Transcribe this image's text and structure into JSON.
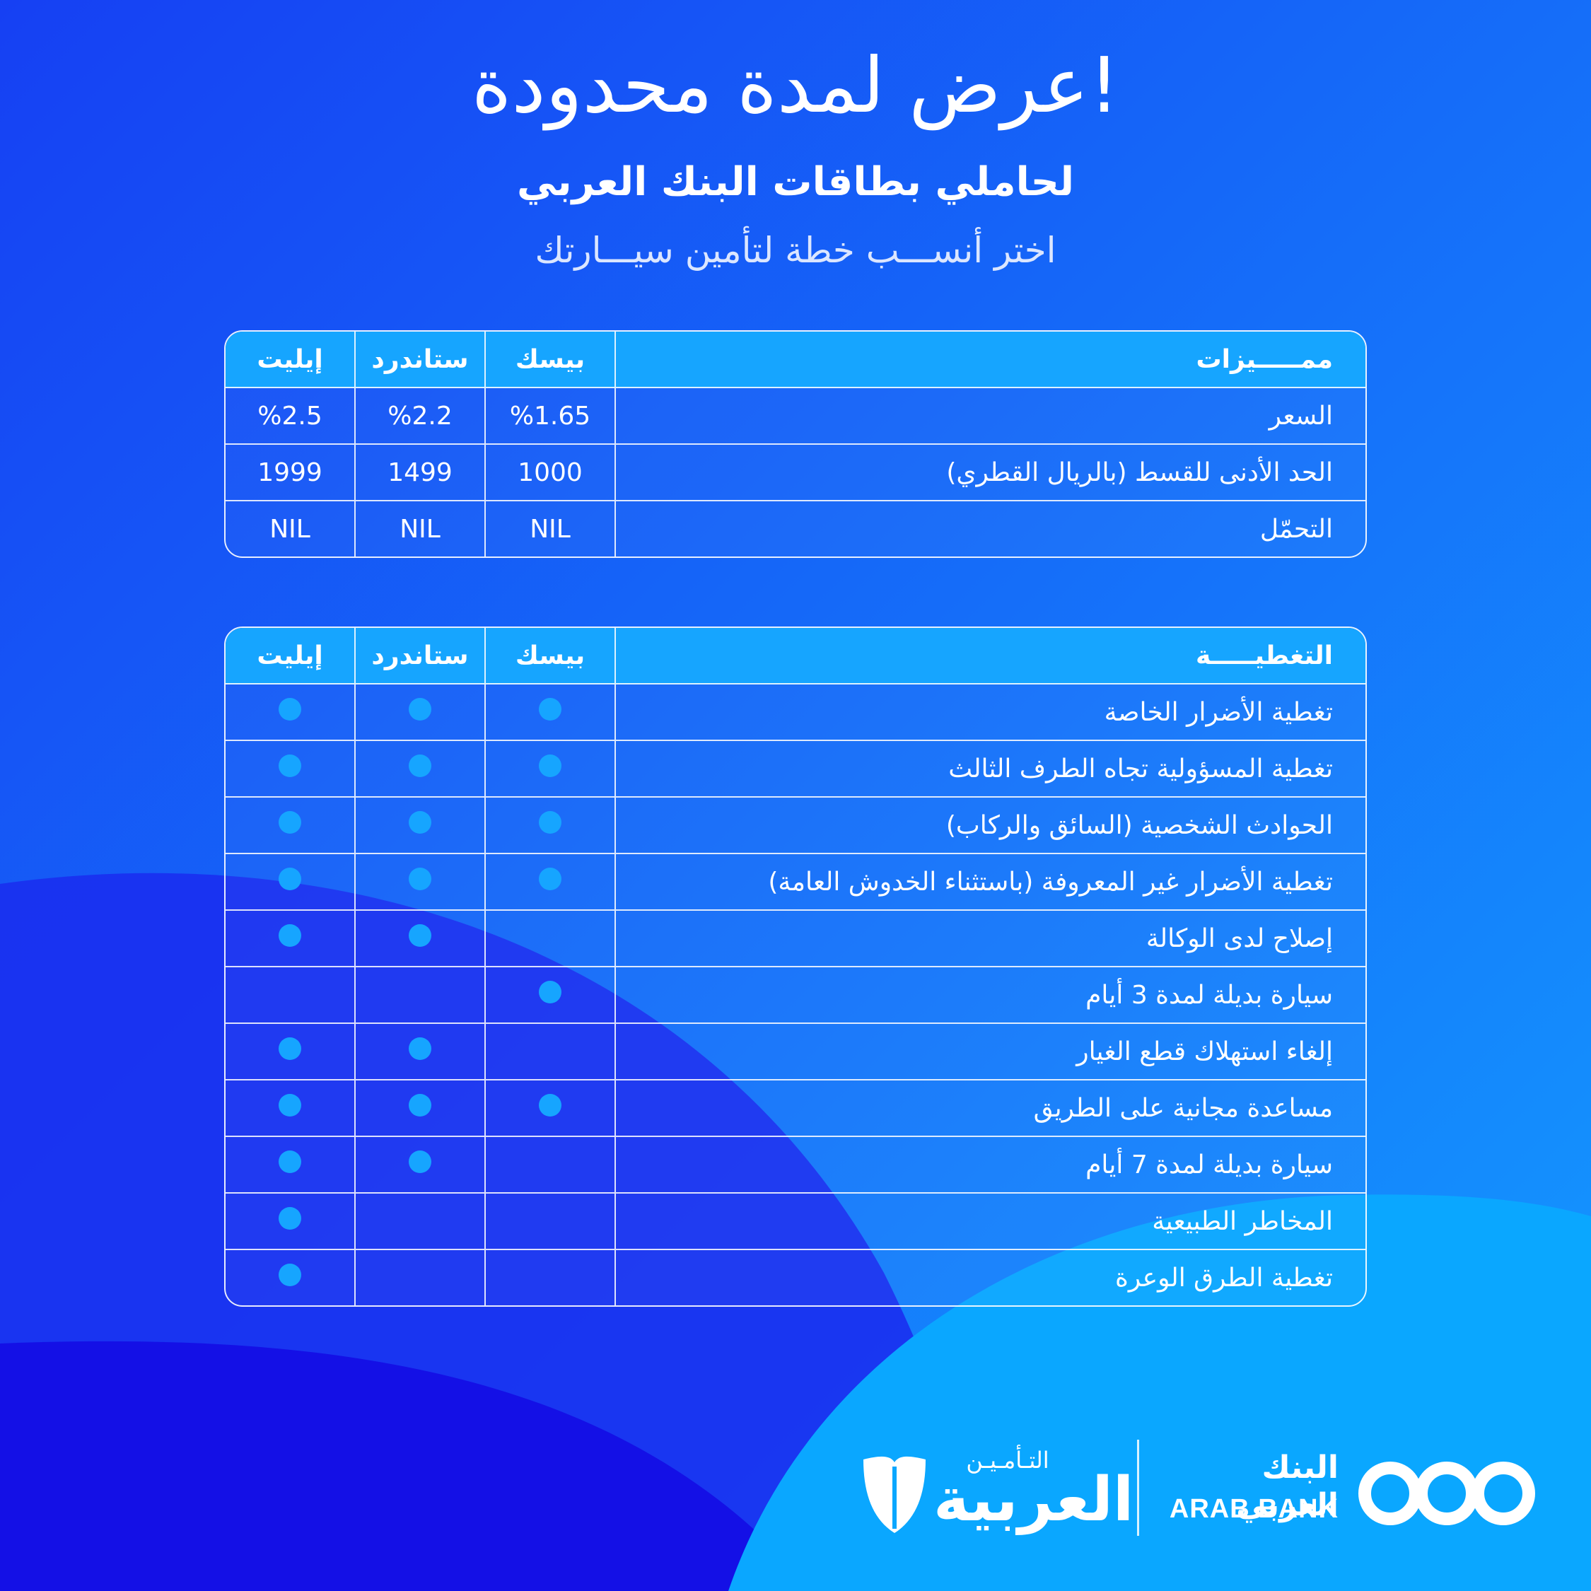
{
  "headline": "عرض لمدة محدودة!",
  "subheadline": "لحاملي بطاقات البنك العربي",
  "tagline": "اختر أنســـب خطة لتأمين سيـــارتك",
  "colors": {
    "background": "#1a3cf5",
    "accent": "#16a5ff",
    "dark_blue": "#1410e6",
    "text": "#ffffff"
  },
  "pricing_table": {
    "header": {
      "feature": "ممـــــيزات",
      "basic": "بيسك",
      "standard": "ستاندرد",
      "elite": "إيليت"
    },
    "rows": [
      {
        "label": "السعر",
        "basic": "%1.65",
        "standard": "%2.2",
        "elite": "%2.5"
      },
      {
        "label": "الحد الأدنى للقسط (بالريال القطري)",
        "basic": "1000",
        "standard": "1499",
        "elite": "1999"
      },
      {
        "label": "التحمّل",
        "basic": "NIL",
        "standard": "NIL",
        "elite": "NIL"
      }
    ]
  },
  "coverage_table": {
    "header": {
      "feature": "التغطيـــــة",
      "basic": "بيسك",
      "standard": "ستاندرد",
      "elite": "إيليت"
    },
    "rows": [
      {
        "label": "تغطية الأضرار الخاصة",
        "basic": true,
        "standard": true,
        "elite": true
      },
      {
        "label": "تغطية المسؤولية تجاه الطرف الثالث",
        "basic": true,
        "standard": true,
        "elite": true
      },
      {
        "label": "الحوادث الشخصية (السائق والركاب)",
        "basic": true,
        "standard": true,
        "elite": true
      },
      {
        "label": "تغطية الأضرار غير المعروفة (باستثناء الخدوش العامة)",
        "basic": true,
        "standard": true,
        "elite": true
      },
      {
        "label": "إصلاح لدى الوكالة",
        "basic": false,
        "standard": true,
        "elite": true
      },
      {
        "label": "سيارة بديلة لمدة 3 أيام",
        "basic": true,
        "standard": false,
        "elite": false
      },
      {
        "label": "إلغاء استهلاك قطع الغيار",
        "basic": false,
        "standard": true,
        "elite": true
      },
      {
        "label": "مساعدة مجانية على الطريق",
        "basic": true,
        "standard": true,
        "elite": true
      },
      {
        "label": "سيارة بديلة لمدة 7 أيام",
        "basic": false,
        "standard": true,
        "elite": true
      },
      {
        "label": "المخاطر الطبيعية",
        "basic": false,
        "standard": false,
        "elite": true
      },
      {
        "label": "تغطية الطرق الوعرة",
        "basic": false,
        "standard": false,
        "elite": true
      }
    ]
  },
  "footer": {
    "arab_bank_ar": "البنك العربي",
    "arab_bank_en": "ARAB BANK",
    "arab_bank_logo_icon": "arab-bank-rings-logo",
    "insurance_small": "التـأمـيـن",
    "insurance_big": "العربية",
    "insurance_logo_icon": "shield-logo"
  }
}
